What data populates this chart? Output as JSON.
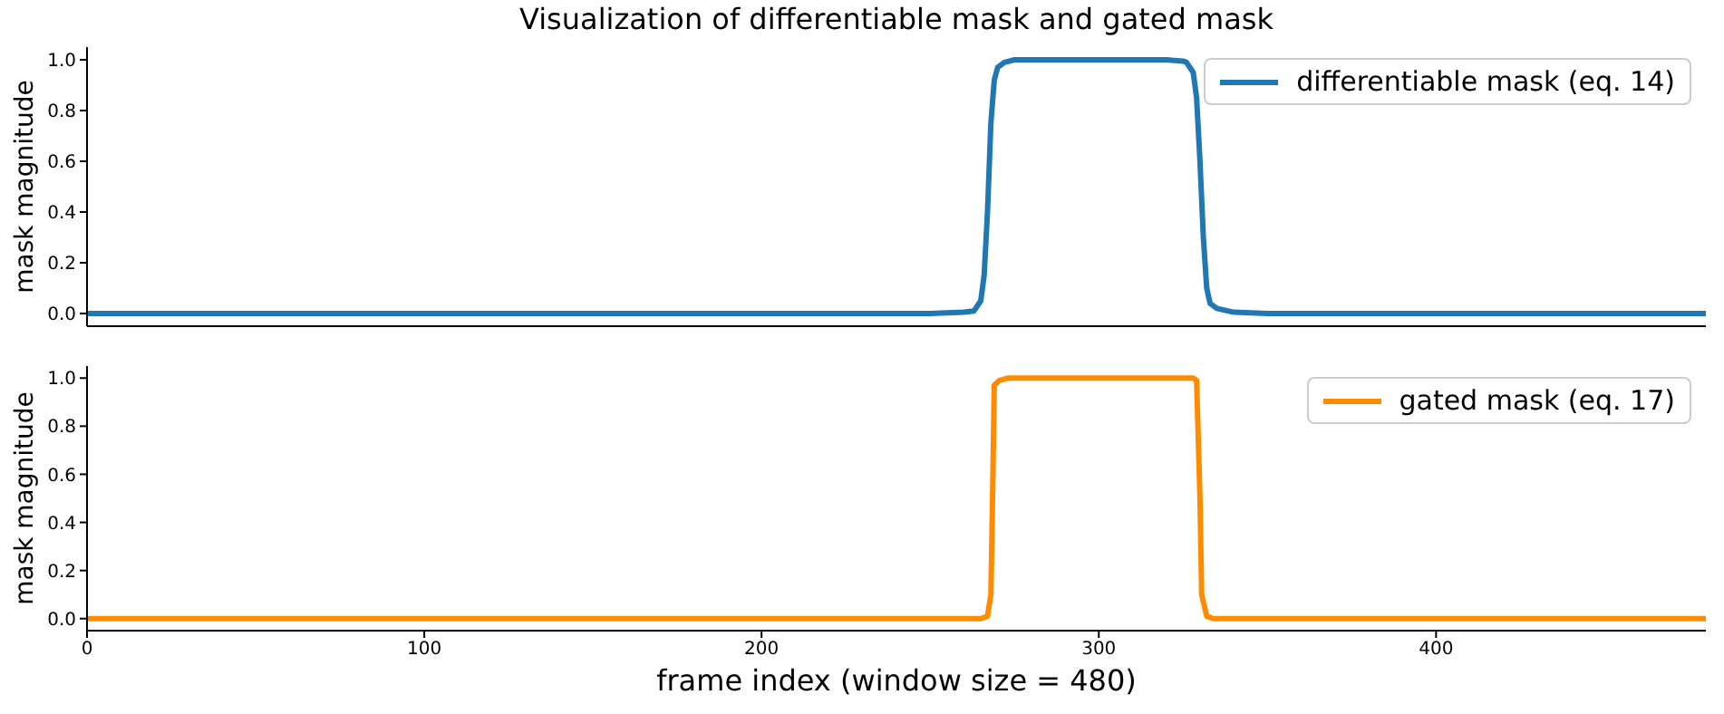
{
  "chart_data": [
    {
      "type": "line",
      "title": "Visualization of differentiable mask and gated mask",
      "ylabel": "mask magnitude",
      "x": [
        0,
        50,
        100,
        150,
        200,
        250,
        260,
        263,
        265,
        266,
        267,
        268,
        269,
        270,
        272,
        275,
        300,
        320,
        325,
        326,
        328,
        329,
        330,
        331,
        332,
        333,
        335,
        340,
        350,
        400,
        480
      ],
      "series": [
        {
          "name": "differentiable mask (eq. 14)",
          "color": "#1f77b4",
          "values": [
            0,
            0,
            0,
            0,
            0,
            0,
            0.005,
            0.01,
            0.05,
            0.15,
            0.4,
            0.75,
            0.92,
            0.97,
            0.99,
            1,
            1,
            1,
            0.995,
            0.99,
            0.95,
            0.85,
            0.6,
            0.3,
            0.1,
            0.04,
            0.02,
            0.005,
            0,
            0,
            0
          ]
        }
      ],
      "xlim": [
        0,
        480
      ],
      "xticks": [
        0,
        100,
        200,
        300,
        400
      ],
      "ylim": [
        -0.05,
        1.05
      ],
      "yticks": [
        {
          "value": 0,
          "label": "0.0"
        },
        {
          "value": 0.2,
          "label": "0.2"
        },
        {
          "value": 0.4,
          "label": "0.4"
        },
        {
          "value": 0.6,
          "label": "0.6"
        },
        {
          "value": 0.8,
          "label": "0.8"
        },
        {
          "value": 1,
          "label": "1.0"
        }
      ],
      "tick_labels": "y",
      "legend": "top right",
      "grid": false,
      "marker": "none",
      "line_style": "solid"
    },
    {
      "type": "line",
      "xlabel": "frame index (window size = 480)",
      "ylabel": "mask magnitude",
      "x": [
        0,
        100,
        200,
        265,
        267,
        268,
        268.5,
        269,
        270.5,
        273,
        300,
        328,
        329,
        330,
        330.5,
        332,
        334,
        400,
        480
      ],
      "series": [
        {
          "name": "gated mask (eq. 17)",
          "color": "#ff8c00",
          "values": [
            0,
            0,
            0,
            0,
            0.01,
            0.1,
            0.5,
            0.97,
            0.99,
            1,
            1,
            1,
            0.99,
            0.5,
            0.1,
            0.01,
            0,
            0,
            0
          ]
        }
      ],
      "xlim": [
        0,
        480
      ],
      "xticks": [
        0,
        100,
        200,
        300,
        400
      ],
      "ylim": [
        -0.05,
        1.05
      ],
      "yticks": [
        {
          "value": 0,
          "label": "0.0"
        },
        {
          "value": 0.2,
          "label": "0.2"
        },
        {
          "value": 0.4,
          "label": "0.4"
        },
        {
          "value": 0.6,
          "label": "0.6"
        },
        {
          "value": 0.8,
          "label": "0.8"
        },
        {
          "value": 1,
          "label": "1.0"
        }
      ],
      "legend": "top right",
      "grid": false,
      "marker": "none",
      "line_style": "solid"
    }
  ]
}
